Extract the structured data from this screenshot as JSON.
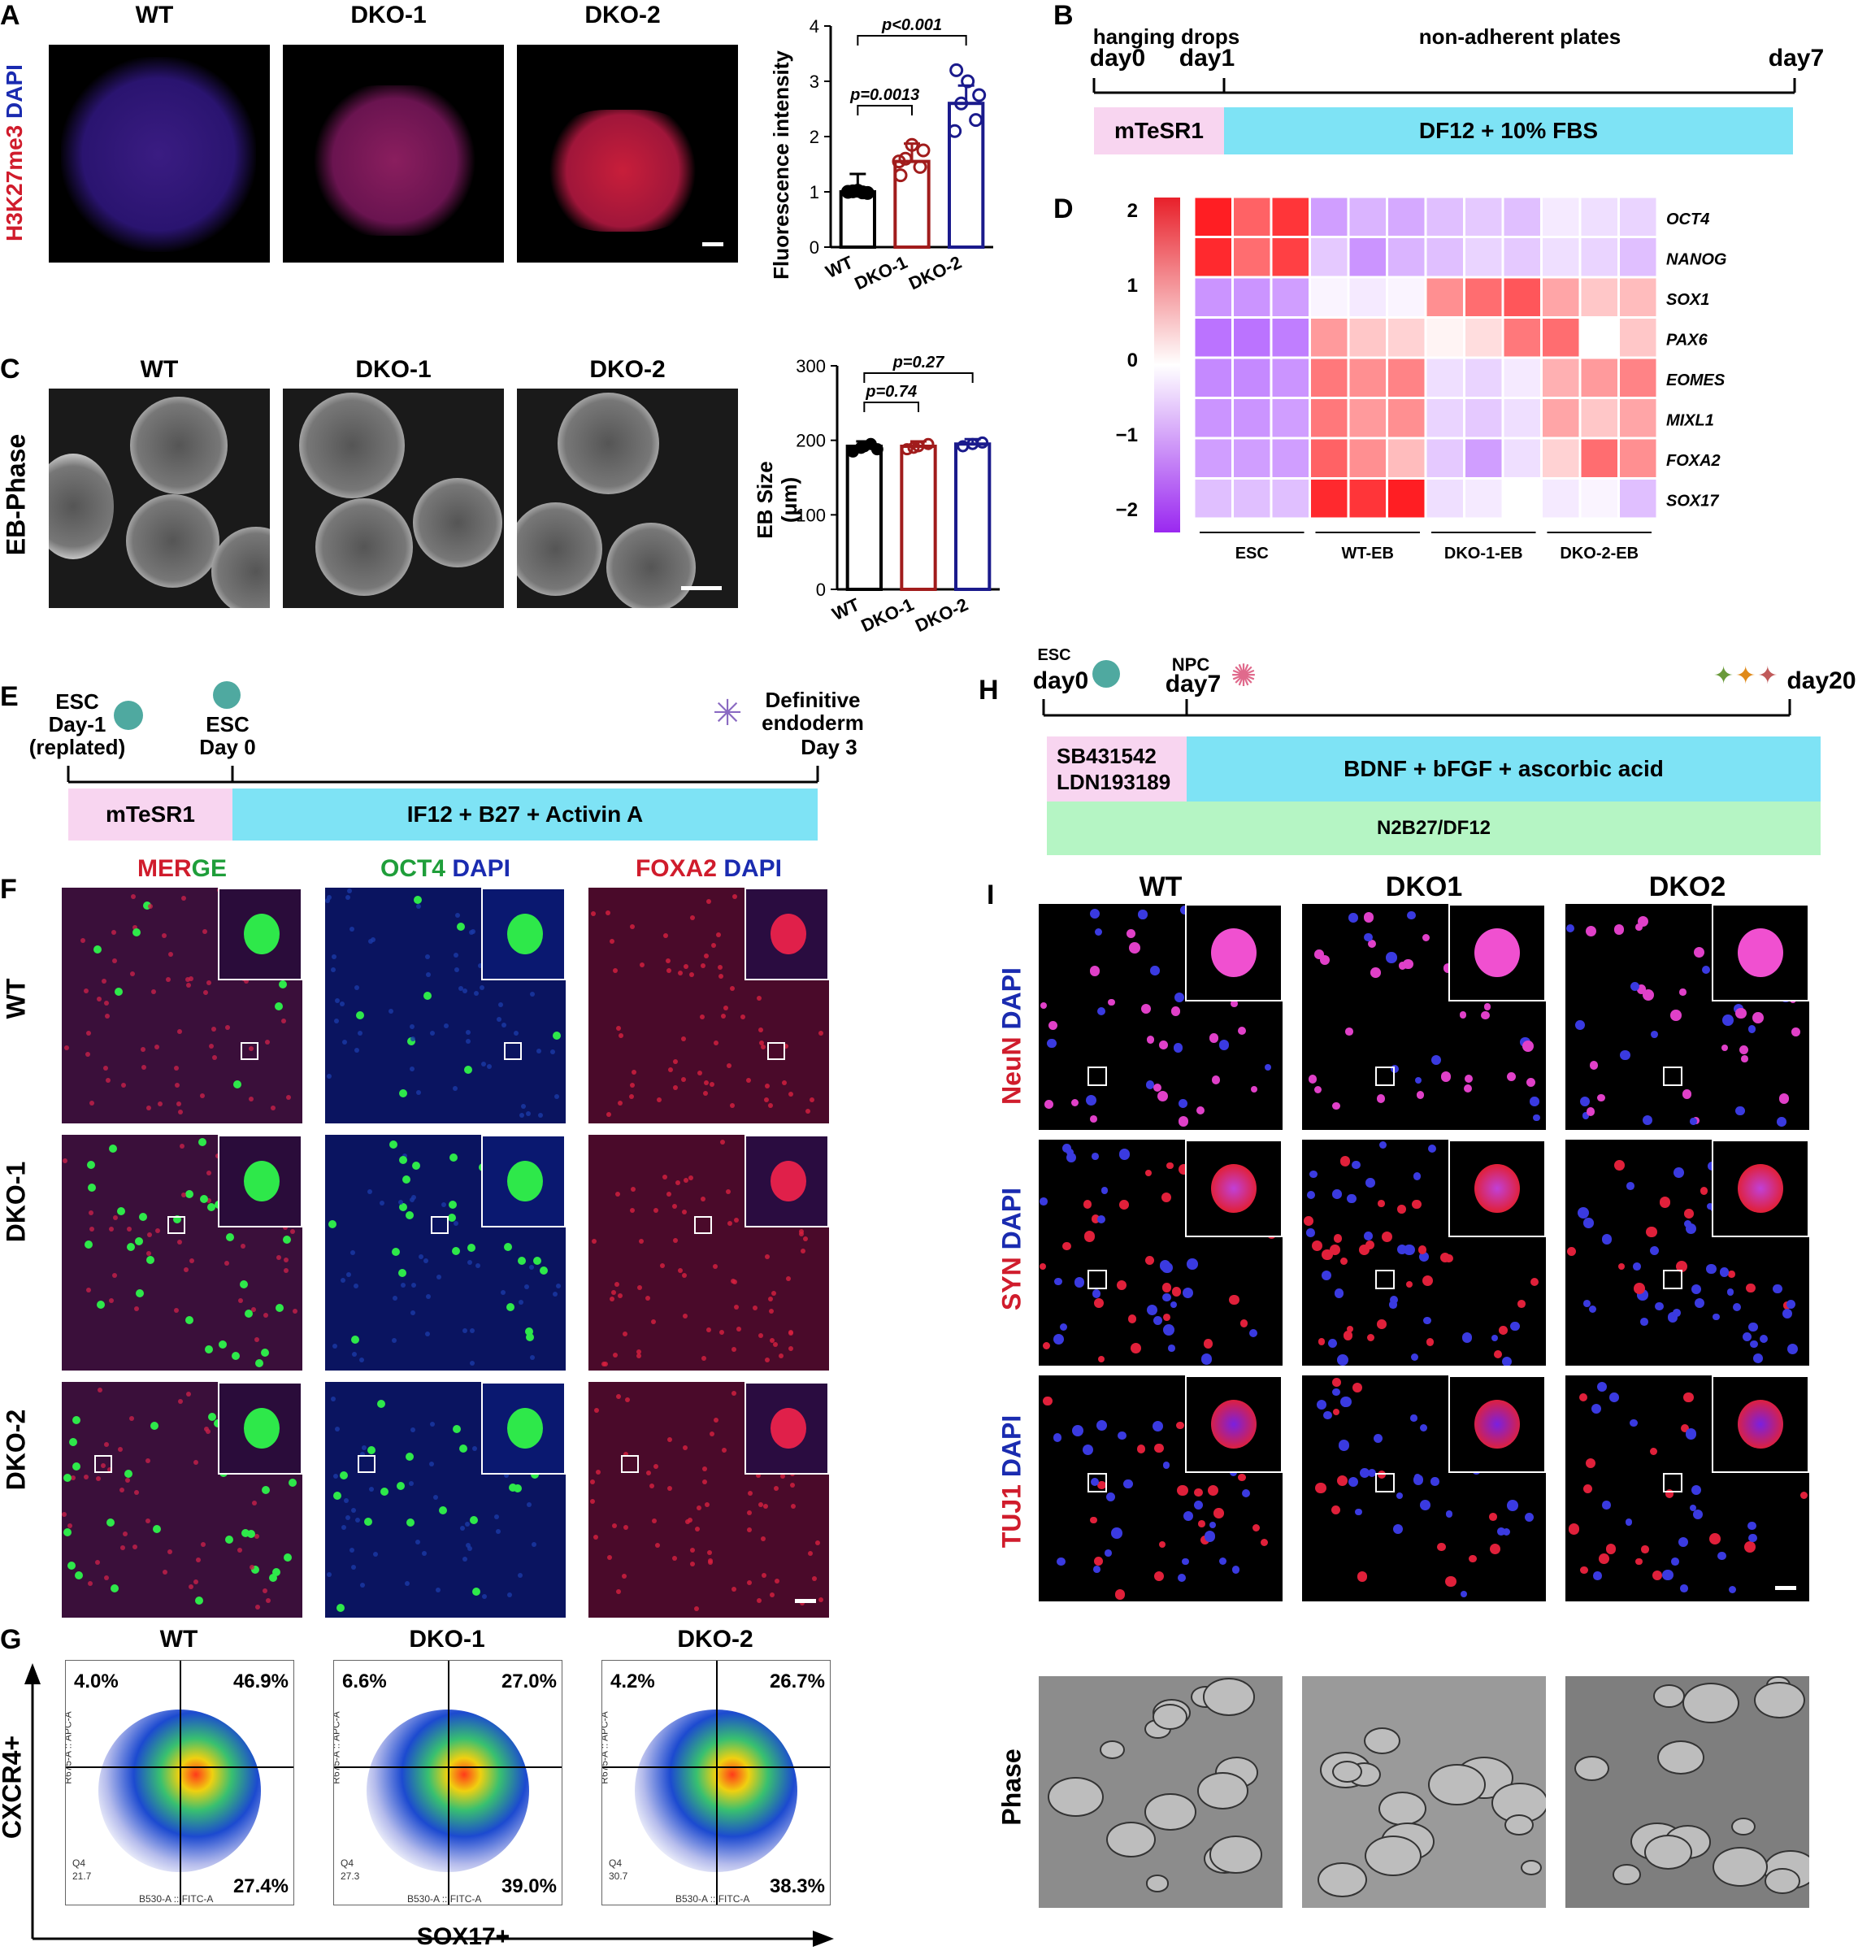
{
  "panelA": {
    "letter": "A",
    "stain": "H3K27me3",
    "stain2": "DAPI",
    "columns": [
      "WT",
      "DKO-1",
      "DKO-2"
    ],
    "chart_data": {
      "type": "bar",
      "categories": [
        "WT",
        "DKO-1",
        "DKO-2"
      ],
      "values": [
        1.0,
        1.55,
        2.6
      ],
      "ylabel": "Fluorescence intensity",
      "ylim": [
        0,
        4
      ],
      "yticks": [
        "0",
        "1",
        "2",
        "3",
        "4"
      ],
      "annotations": [
        "p=0.0013",
        "p<0.001"
      ],
      "colors": [
        "#000000",
        "#a11c1c",
        "#1a1a8c"
      ]
    }
  },
  "panelB": {
    "letter": "B",
    "top_labels": {
      "hanging": "hanging drops",
      "nonadherent": "non-adherent plates"
    },
    "days": {
      "d0": "day0",
      "d1": "day1",
      "d7": "day7"
    },
    "media": {
      "m1": "mTeSR1",
      "m2": "DF12 + 10% FBS"
    },
    "colors": {
      "pink": "#f8d5f0",
      "cyan": "#7ee3f5"
    }
  },
  "panelC": {
    "letter": "C",
    "row_label": "EB-Phase",
    "columns": [
      "WT",
      "DKO-1",
      "DKO-2"
    ],
    "chart_data": {
      "type": "bar",
      "categories": [
        "WT",
        "DKO-1",
        "DKO-2"
      ],
      "values": [
        192,
        192,
        195
      ],
      "ylabel_line1": "EB  Size",
      "ylabel_line2": "(μm)",
      "ylim": [
        0,
        300
      ],
      "yticks": [
        "0",
        "100",
        "200",
        "300"
      ],
      "annotations": [
        "p=0.74",
        "p=0.27"
      ],
      "colors": [
        "#000000",
        "#a11c1c",
        "#1a1a8c"
      ]
    }
  },
  "panelD": {
    "letter": "D",
    "chart_data": {
      "type": "heatmap",
      "rows": [
        "OCT4",
        "NANOG",
        "SOX1",
        "PAX6",
        "EOMES",
        "MIXL1",
        "FOXA2",
        "SOX17"
      ],
      "groups": [
        "ESC",
        "WT-EB",
        "DKO-1-EB",
        "DKO-2-EB"
      ],
      "colorbar_ticks": [
        "2",
        "1",
        "0",
        "−1",
        "−2"
      ],
      "range": [
        -2,
        2
      ],
      "values": [
        [
          2.0,
          1.4,
          1.8,
          -0.9,
          -0.7,
          -0.8,
          -0.6,
          -0.5,
          -0.6,
          -0.2,
          -0.3,
          -0.4
        ],
        [
          1.9,
          1.3,
          1.7,
          -0.5,
          -1.0,
          -0.7,
          -0.6,
          -0.4,
          -0.5,
          -0.3,
          -0.4,
          -0.6
        ],
        [
          -1.0,
          -1.0,
          -0.9,
          -0.1,
          -0.2,
          -0.1,
          1.0,
          1.3,
          1.5,
          0.8,
          0.5,
          0.6
        ],
        [
          -1.3,
          -1.3,
          -1.2,
          0.9,
          0.5,
          0.4,
          0.1,
          0.3,
          1.2,
          1.3,
          0.0,
          0.5
        ],
        [
          -1.1,
          -1.1,
          -1.0,
          1.2,
          1.0,
          1.1,
          -0.3,
          -0.4,
          -0.2,
          0.7,
          0.9,
          1.1
        ],
        [
          -1.0,
          -1.0,
          -0.9,
          1.2,
          0.9,
          1.0,
          -0.4,
          -0.5,
          -0.3,
          0.8,
          0.5,
          0.8
        ],
        [
          -0.9,
          -0.9,
          -0.9,
          1.4,
          1.0,
          0.6,
          -0.5,
          -0.9,
          -0.3,
          0.4,
          1.3,
          1.0
        ],
        [
          -0.6,
          -0.6,
          -0.6,
          1.9,
          1.8,
          2.0,
          -0.3,
          -0.2,
          0.0,
          -0.2,
          -0.1,
          -0.6
        ]
      ]
    }
  },
  "panelE": {
    "letter": "E",
    "t1": [
      "ESC",
      "Day-1",
      "(replated)"
    ],
    "t2": [
      "ESC",
      "Day 0"
    ],
    "t3": [
      "Definitive",
      "endoderm",
      "Day 3"
    ],
    "media": {
      "m1": "mTeSR1",
      "m2": "IF12 + B27 + Activin A"
    }
  },
  "panelF": {
    "letter": "F",
    "col_merge": [
      "ME",
      "R",
      "GE"
    ],
    "col_oct4": [
      "OCT4",
      "DAPI"
    ],
    "col_foxa2": [
      "FOXA2",
      "DAPI"
    ],
    "rows": [
      "WT",
      "DKO-1",
      "DKO-2"
    ]
  },
  "panelG": {
    "letter": "G",
    "columns": [
      "WT",
      "DKO-1",
      "DKO-2"
    ],
    "y_axis": "CXCR4+",
    "x_axis": "SOX17+",
    "quadrants": [
      {
        "ul": "4.0%",
        "ur": "46.9%",
        "lr": "27.4%",
        "ll": "21.7"
      },
      {
        "ul": "6.6%",
        "ur": "27.0%",
        "lr": "39.0%",
        "ll": "27.3"
      },
      {
        "ul": "4.2%",
        "ur": "26.7%",
        "lr": "38.3%",
        "ll": "30.7"
      }
    ],
    "q4": "Q4",
    "ych": "R675-A :: APC-A",
    "xch": "B530-A :: FITC-A"
  },
  "panelH": {
    "letter": "H",
    "t1": [
      "ESC",
      "day0"
    ],
    "t2": [
      "NPC",
      "day7"
    ],
    "t3": "day20",
    "media": {
      "m1": [
        "SB431542",
        "LDN193189"
      ],
      "m2": "BDNF + bFGF + ascorbic acid",
      "m3": "N2B27/DF12"
    }
  },
  "panelI": {
    "letter": "I",
    "columns": [
      "WT",
      "DKO1",
      "DKO2"
    ],
    "rows": [
      {
        "marker": "NeuN",
        "dapi": "DAPI"
      },
      {
        "marker": "SYN",
        "dapi": "DAPI"
      },
      {
        "marker": "TUJ1",
        "dapi": "DAPI"
      }
    ],
    "phase_label": "Phase"
  }
}
